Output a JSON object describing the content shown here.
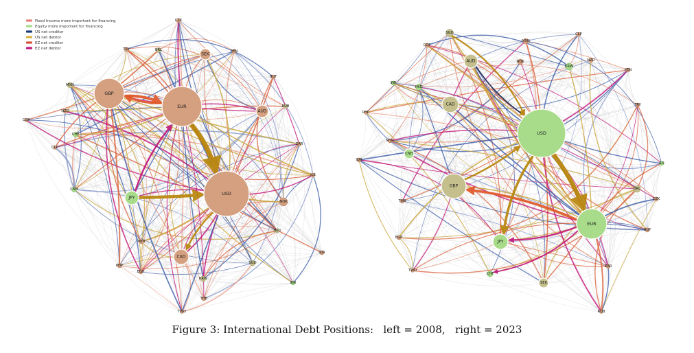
{
  "figure": {
    "caption": "Figure 3: International Debt Positions:   left = 2008,   right = 2023",
    "legend": [
      {
        "label": "Fixed Income more important for financing",
        "color": "#e8807a"
      },
      {
        "label": "Equity more important for financing",
        "color": "#a8dc8a"
      },
      {
        "label": "US net creditor",
        "color": "#1f3a7a"
      },
      {
        "label": "US net debtor",
        "color": "#d9b341"
      },
      {
        "label": "EZ net creditor",
        "color": "#d9533a"
      },
      {
        "label": "EZ net debtor",
        "color": "#c2187a"
      }
    ],
    "colors": {
      "fixed_income_node": "#d4a080",
      "equity_node": "#a8dc8a",
      "mixed_node": "#c4bf8c",
      "background_edge": "#d2d2d2",
      "us_creditor": "#3a5aa8",
      "us_debtor": "#c9a53a",
      "ez_creditor": "#d9603a",
      "ez_debtor": "#c2187a",
      "big_gold_arrow": "#b8860b",
      "big_orange_arrow": "#e0592a"
    }
  },
  "panels": [
    {
      "id": "left",
      "year": "2008",
      "nodes": [
        {
          "label": "CZK",
          "cat": "fi"
        },
        {
          "label": "TRY",
          "cat": "fi"
        },
        {
          "label": "BRL",
          "cat": "mix"
        },
        {
          "label": "SEK",
          "cat": "fi"
        },
        {
          "label": "PEN",
          "cat": "fi"
        },
        {
          "label": "MXN",
          "cat": "mix"
        },
        {
          "label": "GBP",
          "cat": "fi"
        },
        {
          "label": "EUR",
          "cat": "fi"
        },
        {
          "label": "HUF",
          "cat": "fi"
        },
        {
          "label": "NZD",
          "cat": "fi"
        },
        {
          "label": "AUD",
          "cat": "fi"
        },
        {
          "label": "RUB",
          "cat": "mix"
        },
        {
          "label": "COP",
          "cat": "fi"
        },
        {
          "label": "CHF",
          "cat": "eq"
        },
        {
          "label": "CLP",
          "cat": "fi"
        },
        {
          "label": "ZAR",
          "cat": "fi"
        },
        {
          "label": "ILS",
          "cat": "fi"
        },
        {
          "label": "CNH",
          "cat": "eq"
        },
        {
          "label": "JPY",
          "cat": "eq"
        },
        {
          "label": "USD",
          "cat": "fi"
        },
        {
          "label": "NOK",
          "cat": "fi"
        },
        {
          "label": "HKD",
          "cat": "mix"
        },
        {
          "label": "MYR",
          "cat": "fi"
        },
        {
          "label": "IDR",
          "cat": "fi"
        },
        {
          "label": "PHP",
          "cat": "fi"
        },
        {
          "label": "EGP",
          "cat": "fi"
        },
        {
          "label": "CAD",
          "cat": "fi"
        },
        {
          "label": "SGD",
          "cat": "mix"
        },
        {
          "label": "KRW",
          "cat": "mix"
        },
        {
          "label": "THB",
          "cat": "fi"
        },
        {
          "label": "INR",
          "cat": "eq"
        },
        {
          "label": "TWD",
          "cat": "fi"
        }
      ]
    },
    {
      "id": "right",
      "year": "2023",
      "nodes": [
        {
          "label": "SGD",
          "cat": "mix"
        },
        {
          "label": "COP",
          "cat": "fi"
        },
        {
          "label": "MXN",
          "cat": "fi"
        },
        {
          "label": "CLP",
          "cat": "fi"
        },
        {
          "label": "AUD",
          "cat": "mix"
        },
        {
          "label": "NOK",
          "cat": "fi"
        },
        {
          "label": "KRW",
          "cat": "eq"
        },
        {
          "label": "NZD",
          "cat": "fi"
        },
        {
          "label": "PEN",
          "cat": "fi"
        },
        {
          "label": "INR",
          "cat": "eq"
        },
        {
          "label": "HKD",
          "cat": "eq"
        },
        {
          "label": "CAD",
          "cat": "mix"
        },
        {
          "label": "TRY",
          "cat": "fi"
        },
        {
          "label": "PHP",
          "cat": "fi"
        },
        {
          "label": "USD",
          "cat": "eq"
        },
        {
          "label": "MYR",
          "cat": "fi"
        },
        {
          "label": "CNH",
          "cat": "eq"
        },
        {
          "label": "IDR",
          "cat": "fi"
        },
        {
          "label": "ILS",
          "cat": "eq"
        },
        {
          "label": "GBP",
          "cat": "mix"
        },
        {
          "label": "BRL",
          "cat": "mix"
        },
        {
          "label": "THB",
          "cat": "fi"
        },
        {
          "label": "CZK",
          "cat": "fi"
        },
        {
          "label": "EUR",
          "cat": "eq"
        },
        {
          "label": "EGP",
          "cat": "fi"
        },
        {
          "label": "HUF",
          "cat": "fi"
        },
        {
          "label": "JPY",
          "cat": "eq"
        },
        {
          "label": "TWD",
          "cat": "fi"
        },
        {
          "label": "CHF",
          "cat": "eq"
        },
        {
          "label": "ZAR",
          "cat": "fi"
        },
        {
          "label": "SEK",
          "cat": "mix"
        },
        {
          "label": "RUB",
          "cat": "fi"
        }
      ]
    }
  ]
}
